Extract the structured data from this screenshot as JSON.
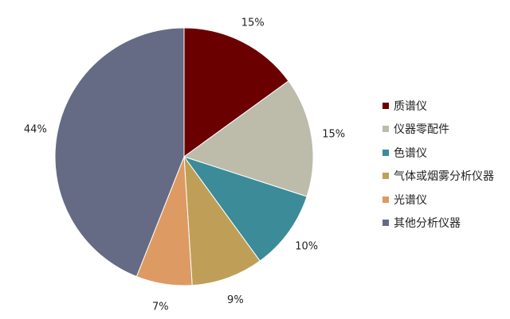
{
  "chart_data": {
    "type": "pie",
    "start": "top, clockwise",
    "slices": [
      {
        "name": "质谱仪",
        "value": 15,
        "label": "15%",
        "color": "#6b0000"
      },
      {
        "name": "仪器零配件",
        "value": 15,
        "label": "15%",
        "color": "#bdbbaa"
      },
      {
        "name": "色谱仪",
        "value": 10,
        "label": "10%",
        "color": "#3b8b99"
      },
      {
        "name": "气体或烟雾分析仪器",
        "value": 9,
        "label": "9%",
        "color": "#bf9f58"
      },
      {
        "name": "光谱仪",
        "value": 7,
        "label": "7%",
        "color": "#de9a63"
      },
      {
        "name": "其他分析仪器",
        "value": 44,
        "label": "44%",
        "color": "#656b85"
      }
    ],
    "legend": "right"
  }
}
